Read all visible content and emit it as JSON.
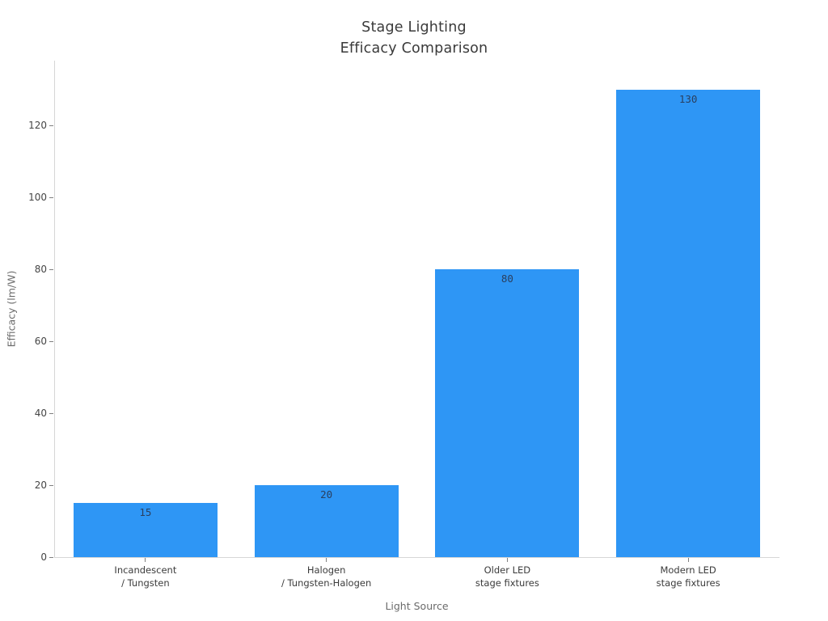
{
  "chart_data": {
    "type": "bar",
    "title_lines": [
      "Stage Lighting",
      "Efficacy Comparison"
    ],
    "categories": [
      [
        "Incandescent",
        "/ Tungsten"
      ],
      [
        "Halogen",
        "/ Tungsten-Halogen"
      ],
      [
        "Older LED",
        "stage fixtures"
      ],
      [
        "Modern LED",
        "stage fixtures"
      ]
    ],
    "values": [
      15,
      20,
      80,
      130
    ],
    "value_labels": [
      "15",
      "20",
      "80",
      "130"
    ],
    "xlabel": "Light Source",
    "ylabel": "Efficacy (lm/W)",
    "ylim": [
      0,
      138
    ],
    "yticks": [
      0,
      20,
      40,
      60,
      80,
      100,
      120
    ],
    "grid": false,
    "legend": "none",
    "colors": {
      "bar": "#2E96F5",
      "value_label": "#2a3f5f",
      "axis_line": "#d6d6d6",
      "tick_mark": "#808080",
      "tick_label": "#454545",
      "category_label": "#3b3b3b",
      "axis_title": "#6b6b6b",
      "title": "#3a3a3a"
    }
  }
}
